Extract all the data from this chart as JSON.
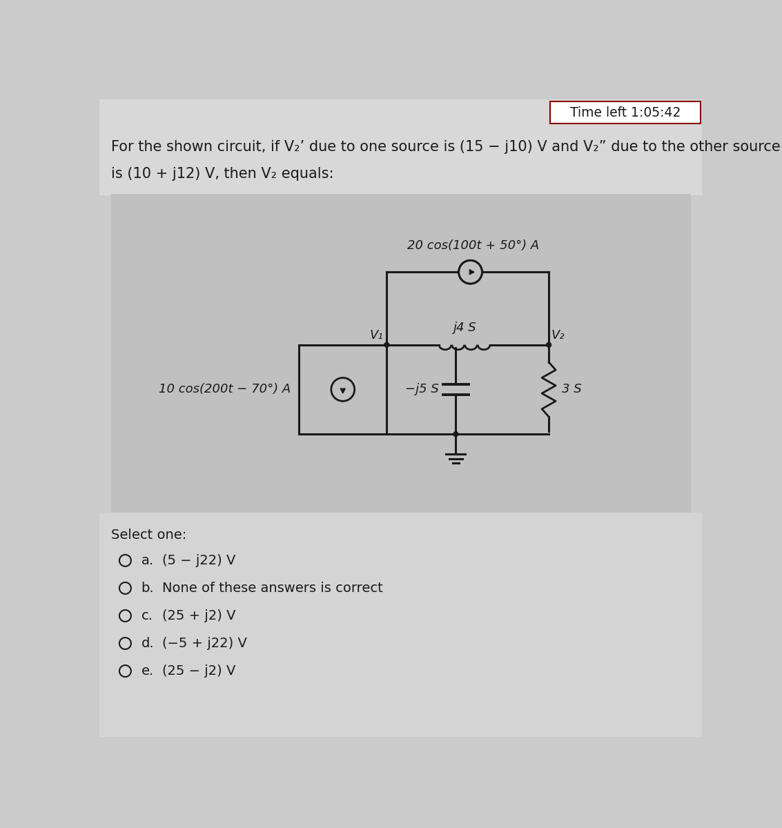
{
  "bg_color": "#cbcbcb",
  "top_strip_color": "#c8c8c8",
  "timer_box_color": "#ffffff",
  "timer_border_color": "#8B0000",
  "timer_text": "Time left 1:05:42",
  "question_text_line1": "For the shown circuit, if V₂’ due to one source is (15 − j10) V and V₂” due to the other source",
  "question_text_line2": "is (10 + j12) V, then V₂ equals:",
  "source1_label": "20 cos(100t + 50°) A",
  "source2_label": "10 cos(200t − 70°) A",
  "inductor_label": "j4 S",
  "capacitor_label": "−j5 S",
  "resistor_label": "3 S",
  "v1_label": "V₁",
  "v2_label": "V₂",
  "select_one": "Select one:",
  "options": [
    {
      "key": "a.",
      "text": "(5 − j22) V"
    },
    {
      "key": "b.",
      "text": "None of these answers is correct"
    },
    {
      "key": "c.",
      "text": "(25 + j2) V"
    },
    {
      "key": "d.",
      "text": "(−5 + j22) V"
    },
    {
      "key": "e.",
      "text": "(25 − j2) V"
    }
  ],
  "panel_bg": "#c0c0c0",
  "text_color": "#1a1a1a",
  "circuit_color": "#1a1a1a",
  "white_area_color": "#e8e8e8"
}
